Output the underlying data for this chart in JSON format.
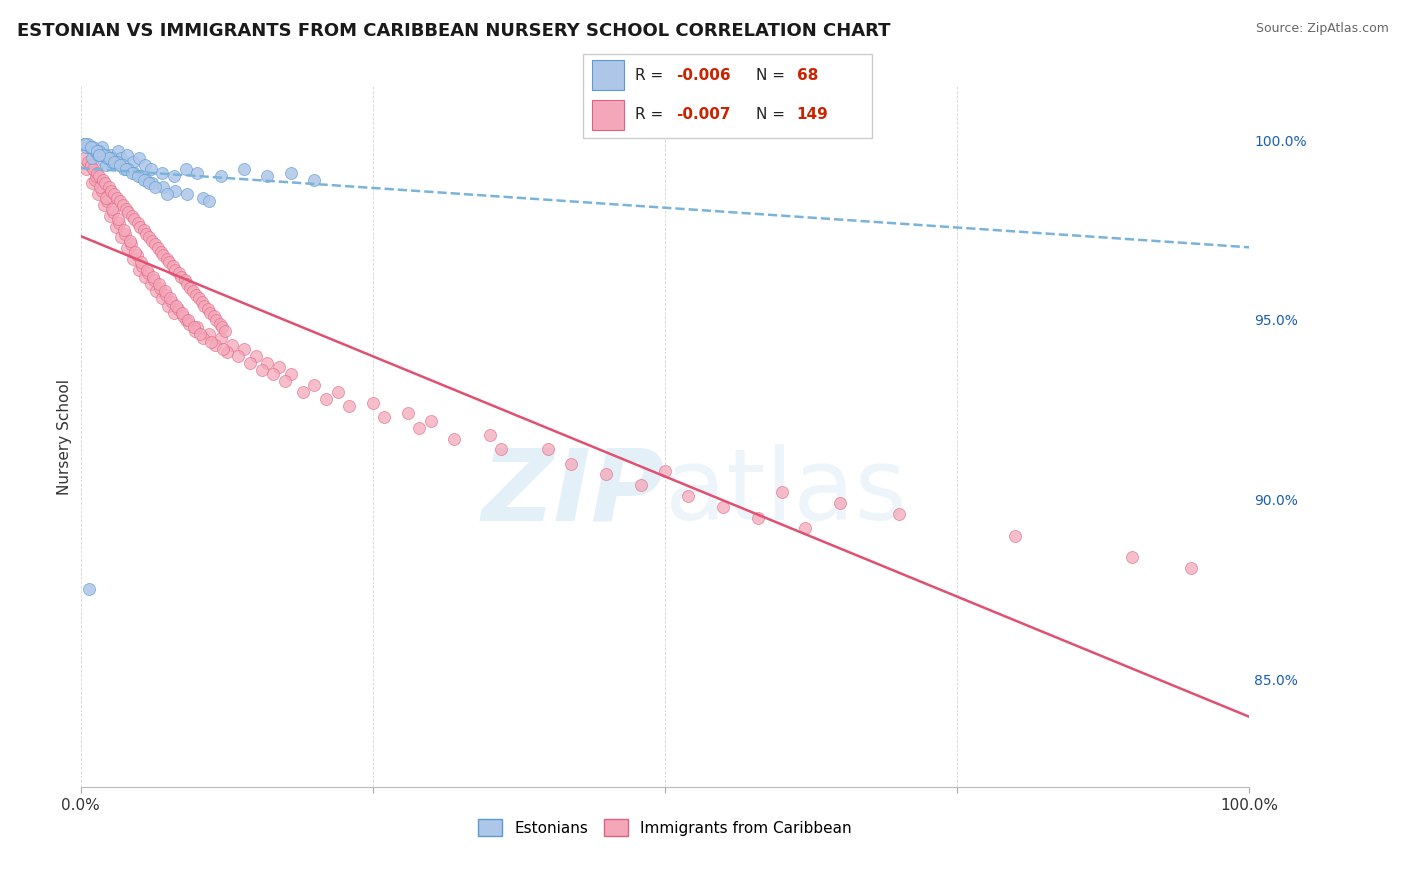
{
  "title": "ESTONIAN VS IMMIGRANTS FROM CARIBBEAN NURSERY SCHOOL CORRELATION CHART",
  "source": "Source: ZipAtlas.com",
  "ylabel": "Nursery School",
  "legend_r1": "-0.006",
  "legend_n1": "68",
  "legend_r2": "-0.007",
  "legend_n2": "149",
  "right_yticks": [
    100.0,
    95.0,
    90.0,
    85.0
  ],
  "right_ytick_labels": [
    "100.0%",
    "95.0%",
    "90.0%",
    "85.0%"
  ],
  "xlim": [
    0.0,
    100.0
  ],
  "ylim": [
    82.0,
    101.5
  ],
  "blue_color": "#aec6e8",
  "blue_edge": "#5b9bd5",
  "pink_color": "#f4a7b9",
  "pink_edge": "#e06080",
  "trend_blue_color": "#7ab3d9",
  "trend_pink_color": "#e05070",
  "scatter_blue_x": [
    0.5,
    1.0,
    1.2,
    1.5,
    1.8,
    2.0,
    2.2,
    2.5,
    2.8,
    3.0,
    3.2,
    3.5,
    4.0,
    4.5,
    5.0,
    5.5,
    6.0,
    7.0,
    8.0,
    9.0,
    10.0,
    12.0,
    14.0,
    16.0,
    18.0,
    20.0,
    0.3,
    0.8,
    1.3,
    1.7,
    2.3,
    2.7,
    3.3,
    3.7,
    0.6,
    1.1,
    1.6,
    2.1,
    2.6,
    3.1,
    3.6,
    4.1,
    4.6,
    5.1,
    5.6,
    6.1,
    7.1,
    8.1,
    9.1,
    10.5,
    11.0,
    0.4,
    0.9,
    1.4,
    1.9,
    2.4,
    2.9,
    3.4,
    3.9,
    4.4,
    4.9,
    5.4,
    5.9,
    6.4,
    7.4,
    0.7,
    1.6
  ],
  "scatter_blue_y": [
    99.8,
    99.5,
    99.7,
    99.6,
    99.8,
    99.4,
    99.3,
    99.6,
    99.5,
    99.4,
    99.7,
    99.5,
    99.6,
    99.4,
    99.5,
    99.3,
    99.2,
    99.1,
    99.0,
    99.2,
    99.1,
    99.0,
    99.2,
    99.0,
    99.1,
    98.9,
    99.9,
    99.8,
    99.7,
    99.6,
    99.5,
    99.4,
    99.3,
    99.2,
    99.9,
    99.8,
    99.7,
    99.6,
    99.5,
    99.4,
    99.3,
    99.2,
    99.1,
    99.0,
    98.9,
    98.8,
    98.7,
    98.6,
    98.5,
    98.4,
    98.3,
    99.9,
    99.8,
    99.7,
    99.6,
    99.5,
    99.4,
    99.3,
    99.2,
    99.1,
    99.0,
    98.9,
    98.8,
    98.7,
    98.5,
    87.5,
    99.6
  ],
  "scatter_pink_x": [
    0.5,
    1.0,
    1.5,
    2.0,
    2.5,
    3.0,
    3.5,
    4.0,
    4.5,
    5.0,
    5.5,
    6.0,
    6.5,
    7.0,
    7.5,
    8.0,
    9.0,
    10.0,
    11.0,
    12.0,
    13.0,
    14.0,
    15.0,
    16.0,
    17.0,
    18.0,
    20.0,
    22.0,
    25.0,
    28.0,
    30.0,
    35.0,
    40.0,
    50.0,
    60.0,
    65.0,
    70.0,
    80.0,
    90.0,
    95.0,
    1.2,
    1.8,
    2.3,
    2.8,
    3.3,
    3.8,
    4.3,
    4.8,
    5.3,
    5.8,
    6.3,
    6.8,
    7.3,
    7.8,
    8.3,
    8.8,
    9.3,
    9.8,
    10.5,
    11.5,
    12.5,
    13.5,
    14.5,
    15.5,
    16.5,
    17.5,
    19.0,
    21.0,
    23.0,
    26.0,
    29.0,
    32.0,
    36.0,
    42.0,
    45.0,
    48.0,
    52.0,
    55.0,
    58.0,
    62.0,
    0.8,
    1.3,
    1.7,
    2.2,
    2.7,
    3.2,
    3.7,
    4.2,
    4.7,
    5.2,
    5.7,
    6.2,
    6.7,
    7.2,
    7.7,
    8.2,
    8.7,
    9.2,
    9.7,
    10.2,
    11.2,
    12.2,
    0.3,
    0.6,
    0.9,
    1.1,
    1.4,
    1.6,
    1.9,
    2.1,
    2.4,
    2.6,
    2.9,
    3.1,
    3.4,
    3.6,
    3.9,
    4.1,
    4.4,
    4.6,
    4.9,
    5.1,
    5.4,
    5.6,
    5.9,
    6.1,
    6.4,
    6.6,
    6.9,
    7.1,
    7.4,
    7.6,
    7.9,
    8.1,
    8.4,
    8.6,
    8.9,
    9.1,
    9.4,
    9.6,
    9.9,
    10.1,
    10.4,
    10.6,
    10.9,
    11.1,
    11.4,
    11.6,
    11.9,
    12.1,
    12.4
  ],
  "scatter_pink_y": [
    99.2,
    98.8,
    98.5,
    98.2,
    97.9,
    97.6,
    97.3,
    97.0,
    96.7,
    96.4,
    96.2,
    96.0,
    95.8,
    95.6,
    95.4,
    95.2,
    95.0,
    94.8,
    94.6,
    94.5,
    94.3,
    94.2,
    94.0,
    93.8,
    93.7,
    93.5,
    93.2,
    93.0,
    92.7,
    92.4,
    92.2,
    91.8,
    91.4,
    90.8,
    90.2,
    89.9,
    89.6,
    89.0,
    88.4,
    88.1,
    98.9,
    98.6,
    98.3,
    98.0,
    97.7,
    97.4,
    97.1,
    96.8,
    96.5,
    96.3,
    96.1,
    95.9,
    95.7,
    95.5,
    95.3,
    95.1,
    94.9,
    94.7,
    94.5,
    94.3,
    94.1,
    94.0,
    93.8,
    93.6,
    93.5,
    93.3,
    93.0,
    92.8,
    92.6,
    92.3,
    92.0,
    91.7,
    91.4,
    91.0,
    90.7,
    90.4,
    90.1,
    89.8,
    89.5,
    89.2,
    99.3,
    99.0,
    98.7,
    98.4,
    98.1,
    97.8,
    97.5,
    97.2,
    96.9,
    96.6,
    96.4,
    96.2,
    96.0,
    95.8,
    95.6,
    95.4,
    95.2,
    95.0,
    94.8,
    94.6,
    94.4,
    94.2,
    99.5,
    99.4,
    99.3,
    99.2,
    99.1,
    99.0,
    98.9,
    98.8,
    98.7,
    98.6,
    98.5,
    98.4,
    98.3,
    98.2,
    98.1,
    98.0,
    97.9,
    97.8,
    97.7,
    97.6,
    97.5,
    97.4,
    97.3,
    97.2,
    97.1,
    97.0,
    96.9,
    96.8,
    96.7,
    96.6,
    96.5,
    96.4,
    96.3,
    96.2,
    96.1,
    96.0,
    95.9,
    95.8,
    95.7,
    95.6,
    95.5,
    95.4,
    95.3,
    95.2,
    95.1,
    95.0,
    94.9,
    94.8,
    94.7
  ]
}
